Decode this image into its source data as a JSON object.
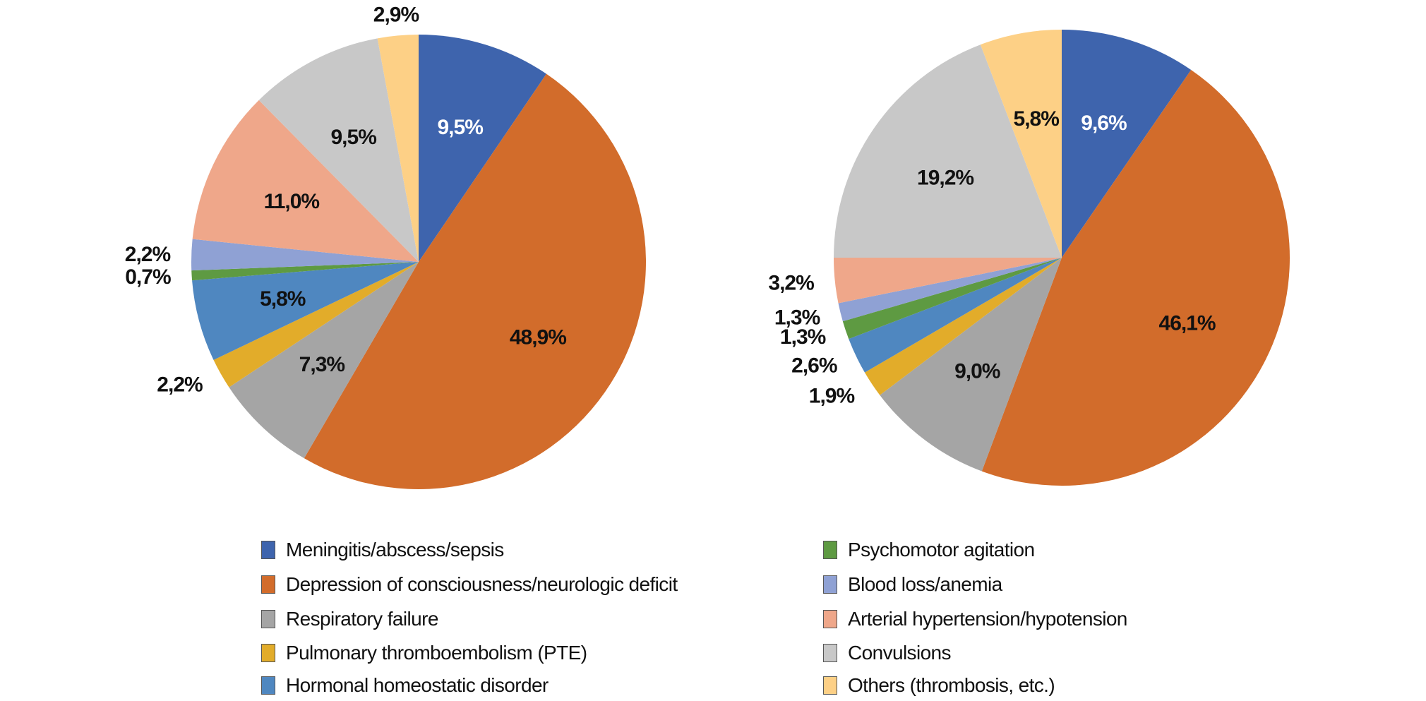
{
  "chart_data": [
    {
      "type": "pie",
      "title": "",
      "categories": [
        "Meningitis/abscess/sepsis",
        "Depression of consciousness/neurologic deficit",
        "Respiratory failure",
        "Pulmonary thromboembolism (PTE)",
        "Hormonal homeostatic disorder",
        "Psychomotor agitation",
        "Blood loss/anemia",
        "Arterial hypertension/hypotension",
        "Convulsions",
        "Others (thrombosis, etc.)"
      ],
      "values": [
        9.5,
        48.9,
        7.3,
        2.2,
        5.8,
        0.7,
        2.2,
        11.0,
        9.5,
        2.9
      ],
      "labels": [
        "9,5%",
        "48,9%",
        "7,3%",
        "2,2%",
        "5,8%",
        "0,7%",
        "2,2%",
        "11,0%",
        "9,5%",
        "2,9%"
      ]
    },
    {
      "type": "pie",
      "title": "",
      "categories": [
        "Meningitis/abscess/sepsis",
        "Depression of consciousness/neurologic deficit",
        "Respiratory failure",
        "Pulmonary thromboembolism (PTE)",
        "Hormonal homeostatic disorder",
        "Psychomotor agitation",
        "Blood loss/anemia",
        "Arterial hypertension/hypotension",
        "Convulsions",
        "Others (thrombosis, etc.)"
      ],
      "values": [
        9.6,
        46.1,
        9.0,
        1.9,
        2.6,
        1.3,
        1.3,
        3.2,
        19.2,
        5.8
      ],
      "labels": [
        "9,6%",
        "46,1%",
        "9,0%",
        "1,9%",
        "2,6%",
        "1,3%",
        "1,3%",
        "3,2%",
        "19,2%",
        "5,8%"
      ]
    }
  ],
  "legend": {
    "placement": "bottom",
    "items": [
      {
        "label": "Meningitis/abscess/sepsis",
        "color": "#3E64AD"
      },
      {
        "label": "Depression of consciousness/neurologic deficit",
        "color": "#D26C2B"
      },
      {
        "label": "Respiratory failure",
        "color": "#A5A5A5"
      },
      {
        "label": "Pulmonary thromboembolism (PTE)",
        "color": "#E2AC2A"
      },
      {
        "label": "Hormonal homeostatic disorder",
        "color": "#4F87C0"
      },
      {
        "label": "Psychomotor agitation",
        "color": "#5E9A42"
      },
      {
        "label": "Blood loss/anemia",
        "color": "#8FA1D4"
      },
      {
        "label": "Arterial hypertension/hypotension",
        "color": "#EFA78A"
      },
      {
        "label": "Convulsions",
        "color": "#C8C8C8"
      },
      {
        "label": "Others (thrombosis, etc.)",
        "color": "#FDD086"
      }
    ]
  }
}
